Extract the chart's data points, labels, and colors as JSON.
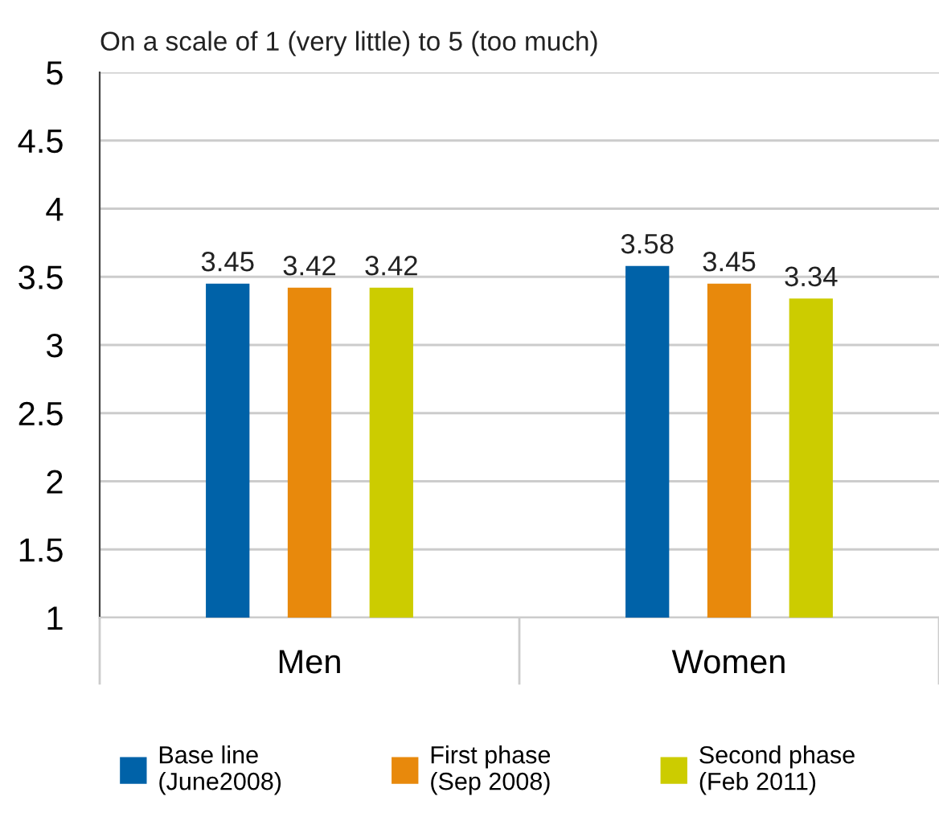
{
  "chart_data": {
    "type": "bar",
    "ylabel": "On a scale of 1 (very little) to 5 (too much)",
    "categories": [
      "Men",
      "Women"
    ],
    "series": [
      {
        "name": "Base line\n(June2008)",
        "color": "#0062a8",
        "values": [
          3.45,
          3.58
        ]
      },
      {
        "name": "First phase\n(Sep 2008)",
        "color": "#e8890c",
        "values": [
          3.42,
          3.45
        ]
      },
      {
        "name": "Second phase\n(Feb 2011)",
        "color": "#cccc00",
        "values": [
          3.42,
          3.34
        ]
      }
    ],
    "ylim": [
      1,
      5
    ],
    "yticks": [
      1,
      1.5,
      2,
      2.5,
      3,
      3.5,
      4,
      4.5,
      5
    ],
    "grid": "y",
    "legend": "bottom",
    "data_labels": true
  }
}
